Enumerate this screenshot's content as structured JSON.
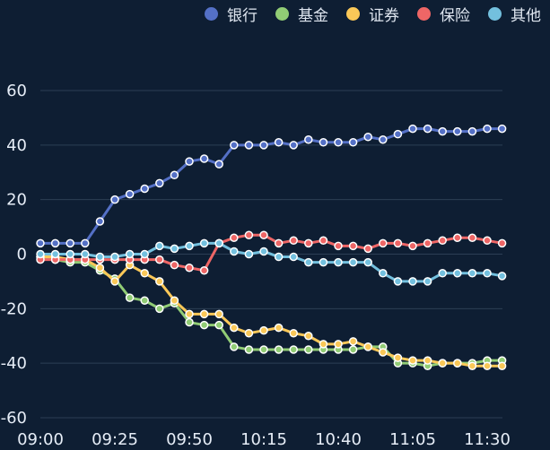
{
  "chart_data": {
    "type": "line",
    "title": "",
    "xlabel": "",
    "ylabel": "",
    "ylim": [
      -60,
      60
    ],
    "yticks": [
      -60,
      -40,
      -20,
      0,
      20,
      40,
      60
    ],
    "xtick_labels": [
      "09:00",
      "09:25",
      "09:50",
      "10:15",
      "10:40",
      "11:05",
      "11:30"
    ],
    "x": [
      "09:00",
      "09:05",
      "09:10",
      "09:15",
      "09:20",
      "09:25",
      "09:30",
      "09:35",
      "09:40",
      "09:45",
      "09:50",
      "09:55",
      "10:00",
      "10:05",
      "10:10",
      "10:15",
      "10:20",
      "10:25",
      "10:30",
      "10:35",
      "10:40",
      "10:45",
      "10:50",
      "10:55",
      "11:00",
      "11:05",
      "11:10",
      "11:15",
      "11:20",
      "11:25",
      "11:30",
      "11:35"
    ],
    "grid": true,
    "legend_position": "top-right",
    "series": [
      {
        "name": "银行",
        "color": "#5470c6",
        "values": [
          4,
          4,
          4,
          4,
          12,
          20,
          22,
          24,
          26,
          29,
          34,
          35,
          33,
          40,
          40,
          40,
          41,
          40,
          42,
          41,
          41,
          41,
          43,
          42,
          44,
          46,
          46,
          45,
          45,
          45,
          46,
          46
        ]
      },
      {
        "name": "基金",
        "color": "#91cc75",
        "values": [
          -1,
          -2,
          -3,
          -3,
          -6,
          -9,
          -16,
          -17,
          -20,
          -18,
          -25,
          -26,
          -26,
          -34,
          -35,
          -35,
          -35,
          -35,
          -35,
          -35,
          -35,
          -35,
          -34,
          -34,
          -40,
          -40,
          -41,
          -40,
          -40,
          -40,
          -39,
          -39
        ]
      },
      {
        "name": "证券",
        "color": "#fac858",
        "values": [
          -1,
          -1,
          -2,
          -2,
          -5,
          -10,
          -4,
          -7,
          -10,
          -17,
          -22,
          -22,
          -22,
          -27,
          -29,
          -28,
          -27,
          -29,
          -30,
          -33,
          -33,
          -32,
          -34,
          -36,
          -38,
          -39,
          -39,
          -40,
          -40,
          -41,
          -41,
          -41
        ]
      },
      {
        "name": "保险",
        "color": "#ee6666",
        "values": [
          -2,
          -2,
          -2,
          -2,
          -2,
          -2,
          -2,
          -2,
          -2,
          -4,
          -5,
          -6,
          4,
          6,
          7,
          7,
          4,
          5,
          4,
          5,
          3,
          3,
          2,
          4,
          4,
          3,
          4,
          5,
          6,
          6,
          5,
          4
        ]
      },
      {
        "name": "其他",
        "color": "#73c0de",
        "values": [
          0,
          0,
          0,
          0,
          -1,
          -1,
          0,
          0,
          3,
          2,
          3,
          4,
          4,
          1,
          0,
          1,
          -1,
          -1,
          -3,
          -3,
          -3,
          -3,
          -3,
          -7,
          -10,
          -10,
          -10,
          -7,
          -7,
          -7,
          -7,
          -8
        ]
      }
    ]
  }
}
